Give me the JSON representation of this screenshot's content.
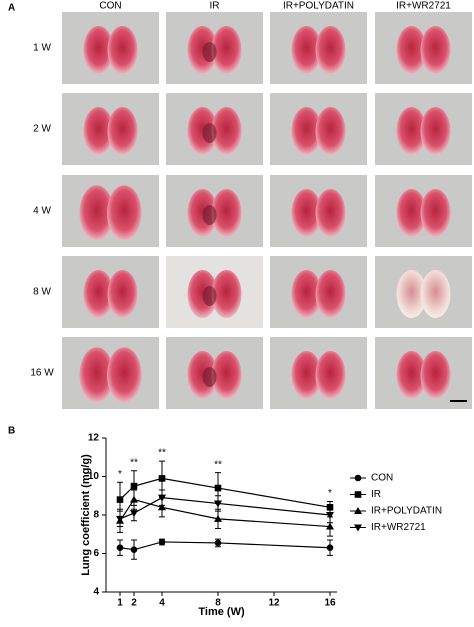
{
  "panel_a": {
    "label": "A",
    "columns": [
      "CON",
      "IR",
      "IR+POLYDATIN",
      "IR+WR2721"
    ],
    "rows": [
      "1 W",
      "2 W",
      "4 W",
      "8 W",
      "16 W"
    ]
  },
  "chart_data": {
    "type": "line",
    "panel_label": "B",
    "x_label": "Time (W)",
    "y_label": "Lung coefficient (mg/g)",
    "x": [
      1,
      2,
      4,
      8,
      16
    ],
    "xlim": [
      0,
      16.5
    ],
    "xticks": [
      1,
      2,
      4,
      8,
      12,
      16
    ],
    "ylim": [
      4,
      12
    ],
    "yticks": [
      4,
      6,
      8,
      10,
      12
    ],
    "legend": "right",
    "color": "#000000",
    "series": [
      {
        "name": "CON",
        "marker": "circle",
        "values": [
          6.3,
          6.2,
          6.6,
          6.55,
          6.3
        ],
        "error": [
          0.4,
          0.5,
          0.15,
          0.2,
          0.4
        ]
      },
      {
        "name": "IR",
        "marker": "square",
        "values": [
          8.8,
          9.5,
          9.9,
          9.4,
          8.4
        ],
        "error": [
          0.9,
          0.8,
          0.9,
          0.8,
          0.3
        ]
      },
      {
        "name": "IR+POLYDATIN",
        "marker": "triangle-up",
        "values": [
          7.7,
          8.8,
          8.4,
          7.8,
          7.4
        ],
        "error": [
          0.6,
          0.5,
          0.5,
          0.5,
          0.5
        ]
      },
      {
        "name": "IR+WR2721",
        "marker": "triangle-down",
        "values": [
          7.8,
          8.1,
          8.9,
          8.6,
          8.0
        ],
        "error": [
          0.4,
          0.4,
          0.4,
          0.4,
          0.4
        ]
      }
    ],
    "annotations": [
      {
        "x": 1,
        "text": "*"
      },
      {
        "x": 2,
        "text": "**"
      },
      {
        "x": 4,
        "text": "**"
      },
      {
        "x": 8,
        "text": "**"
      },
      {
        "x": 16,
        "text": "*"
      }
    ]
  }
}
